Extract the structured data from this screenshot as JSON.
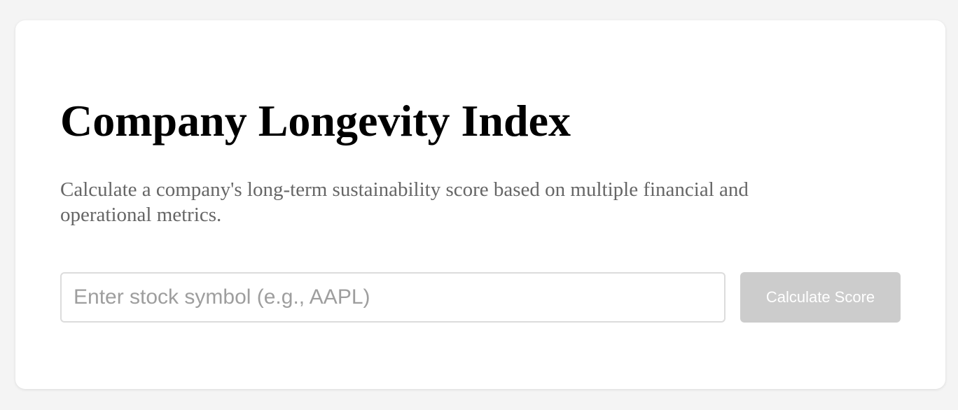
{
  "page": {
    "title": "Company Longevity Index",
    "description": "Calculate a company's long-term sustainability score based on multiple financial and operational metrics."
  },
  "form": {
    "symbol_input": {
      "value": "",
      "placeholder": "Enter stock symbol (e.g., AAPL)"
    },
    "calculate_button": {
      "label": "Calculate Score",
      "disabled": true
    }
  },
  "colors": {
    "page_background": "#f4f4f4",
    "card_background": "#ffffff",
    "title_text": "#000000",
    "description_text": "#666666",
    "placeholder_text": "#9e9e9e",
    "button_disabled_background": "#cccccc",
    "button_text": "#ffffff"
  }
}
